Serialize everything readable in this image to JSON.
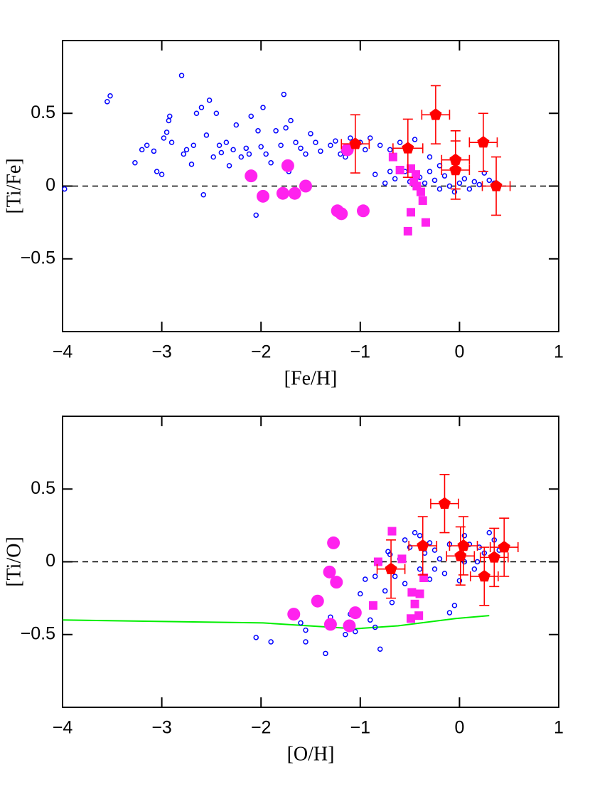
{
  "chart_data": [
    {
      "type": "scatter",
      "xlabel": "[Fe/H]",
      "ylabel": "[Ti/Fe]",
      "xlim": [
        -4,
        1
      ],
      "ylim": [
        -1,
        1
      ],
      "xticks": [
        {
          "value": -4,
          "label": "−4"
        },
        {
          "value": -3,
          "label": "−3"
        },
        {
          "value": -2,
          "label": "−2"
        },
        {
          "value": -1,
          "label": "−1"
        },
        0,
        1
      ],
      "yticks": [
        {
          "value": -0.5,
          "label": "−0.5"
        },
        0,
        0.5
      ],
      "hline": 0,
      "series": [
        {
          "marker": "circle-open",
          "color": "#0000ff",
          "x": [
            -3.98,
            -3.55,
            -3.52,
            -3.27,
            -3.2,
            -3.15,
            -3.08,
            -3.05,
            -3.0,
            -2.98,
            -2.95,
            -2.93,
            -2.92,
            -2.9,
            -2.8,
            -2.78,
            -2.75,
            -2.7,
            -2.68,
            -2.65,
            -2.6,
            -2.58,
            -2.55,
            -2.52,
            -2.48,
            -2.45,
            -2.42,
            -2.4,
            -2.35,
            -2.32,
            -2.28,
            -2.25,
            -2.2,
            -2.15,
            -2.12,
            -2.1,
            -2.05,
            -2.03,
            -2.0,
            -1.98,
            -1.95,
            -1.9,
            -1.85,
            -1.8,
            -1.77,
            -1.75,
            -1.72,
            -1.7,
            -1.65,
            -1.6,
            -1.55,
            -1.5,
            -1.45,
            -1.4,
            -1.3,
            -1.25,
            -1.2,
            -1.15,
            -1.1,
            -1.0,
            -0.95,
            -0.9,
            -0.85,
            -0.8,
            -0.75,
            -0.7,
            -0.7,
            -0.65,
            -0.6,
            -0.55,
            -0.5,
            -0.45,
            -0.4,
            -0.35,
            -0.3,
            -0.3,
            -0.25,
            -0.2,
            -0.2,
            -0.15,
            -0.1,
            -0.05,
            0.0,
            0.05,
            0.1,
            0.15,
            0.2,
            0.25,
            0.3,
            0.35
          ],
          "values": [
            -0.02,
            0.58,
            0.62,
            0.16,
            0.25,
            0.28,
            0.24,
            0.1,
            0.08,
            0.33,
            0.37,
            0.45,
            0.48,
            0.3,
            0.76,
            0.22,
            0.25,
            0.15,
            0.28,
            0.5,
            0.54,
            -0.06,
            0.35,
            0.59,
            0.2,
            0.5,
            0.28,
            0.23,
            0.3,
            0.14,
            0.25,
            0.42,
            0.2,
            0.26,
            0.22,
            0.48,
            -0.2,
            0.38,
            0.27,
            0.54,
            0.22,
            0.16,
            0.38,
            0.28,
            0.63,
            0.4,
            0.1,
            0.45,
            0.3,
            0.26,
            0.22,
            0.36,
            0.3,
            0.24,
            0.28,
            0.31,
            0.22,
            0.2,
            0.33,
            0.3,
            0.25,
            0.33,
            0.08,
            0.28,
            0.02,
            0.25,
            0.1,
            0.05,
            0.3,
            0.1,
            0.03,
            0.32,
            0.06,
            0.02,
            0.1,
            0.2,
            0.04,
            -0.02,
            0.14,
            0.07,
            0.0,
            -0.04,
            0.02,
            0.05,
            -0.02,
            0.03,
            0.01,
            0.09,
            0.04,
            0.02
          ]
        },
        {
          "marker": "circle",
          "color": "#ff22ee",
          "x": [
            -2.1,
            -1.98,
            -1.78,
            -1.73,
            -1.66,
            -1.55,
            -1.23,
            -1.19,
            -0.97,
            -1.13
          ],
          "values": [
            0.07,
            -0.07,
            -0.05,
            0.14,
            -0.05,
            0.0,
            -0.17,
            -0.19,
            -0.17,
            0.25
          ]
        },
        {
          "marker": "square",
          "color": "#ff22ee",
          "x": [
            -0.67,
            -0.6,
            -0.49,
            -0.46,
            -0.43,
            -0.39,
            -0.37,
            -0.49,
            -0.52,
            -0.34,
            -0.44
          ],
          "values": [
            0.2,
            0.11,
            0.12,
            0.03,
            0.0,
            -0.04,
            -0.1,
            -0.18,
            -0.31,
            -0.25,
            0.08
          ]
        },
        {
          "marker": "pentagon",
          "color": "#ff0000",
          "x": [
            -1.05,
            -0.52,
            -0.24,
            -0.04,
            -0.04,
            0.24,
            0.37
          ],
          "values": [
            0.29,
            0.26,
            0.49,
            0.18,
            0.11,
            0.3,
            0.0
          ],
          "xerr": [
            0.14,
            0.15,
            0.14,
            0.14,
            0.14,
            0.14,
            0.14
          ],
          "yerr": [
            0.2,
            0.2,
            0.2,
            0.2,
            0.2,
            0.2,
            0.2
          ]
        }
      ]
    },
    {
      "type": "scatter",
      "xlabel": "[O/H]",
      "ylabel": "[Ti/O]",
      "xlim": [
        -4,
        1
      ],
      "ylim": [
        -1,
        1
      ],
      "xticks": [
        {
          "value": -4,
          "label": "−4"
        },
        {
          "value": -3,
          "label": "−3"
        },
        {
          "value": -2,
          "label": "−2"
        },
        {
          "value": -1,
          "label": "−1"
        },
        0,
        1
      ],
      "yticks": [
        {
          "value": -0.5,
          "label": "−0.5"
        },
        0,
        0.5
      ],
      "hline": 0,
      "series": [
        {
          "marker": "line",
          "color": "#00ee00",
          "x": [
            -4,
            -1.98,
            -1.05,
            -0.62,
            -0.04,
            0.3
          ],
          "values": [
            -0.4,
            -0.42,
            -0.46,
            -0.44,
            -0.39,
            -0.37
          ]
        },
        {
          "marker": "circle-open",
          "color": "#0000ff",
          "x": [
            -2.05,
            -1.9,
            -1.6,
            -1.55,
            -1.55,
            -1.35,
            -1.3,
            -1.15,
            -1.1,
            -1.05,
            -1.0,
            -0.95,
            -0.9,
            -0.85,
            -0.8,
            -0.85,
            -0.8,
            -0.75,
            -0.7,
            -0.68,
            -0.65,
            -0.6,
            -0.55,
            -0.5,
            -0.45,
            -0.4,
            -0.35,
            -0.3,
            -0.25,
            -0.2,
            -0.15,
            -0.1,
            -0.05,
            0.0,
            0.05,
            0.1,
            0.15,
            0.2,
            0.25,
            0.3,
            0.35,
            0.4,
            -0.72,
            -0.1,
            0.18,
            -0.25,
            -0.55,
            -0.4,
            0.05,
            -0.3
          ],
          "values": [
            -0.52,
            -0.55,
            -0.42,
            -0.47,
            -0.55,
            -0.63,
            -0.38,
            -0.5,
            -0.36,
            -0.48,
            -0.22,
            -0.12,
            -0.4,
            -0.45,
            -0.6,
            -0.1,
            0.0,
            -0.2,
            0.05,
            -0.28,
            -0.1,
            0.02,
            -0.15,
            0.1,
            0.2,
            -0.05,
            0.06,
            -0.12,
            0.08,
            0.02,
            -0.08,
            0.12,
            -0.3,
            -0.13,
            0.0,
            0.12,
            -0.05,
            0.1,
            0.06,
            0.2,
            0.15,
            0.08,
            0.07,
            -0.35,
            0.0,
            -0.05,
            0.15,
            0.18,
            0.18,
            0.13
          ]
        },
        {
          "marker": "circle",
          "color": "#ff22ee",
          "x": [
            -1.31,
            -1.27,
            -1.24,
            -1.43,
            -1.67,
            -1.3,
            -1.11,
            -1.05
          ],
          "values": [
            -0.07,
            0.13,
            -0.14,
            -0.27,
            -0.36,
            -0.43,
            -0.44,
            -0.35
          ]
        },
        {
          "marker": "square",
          "color": "#ff22ee",
          "x": [
            -0.68,
            -0.82,
            -0.87,
            -0.58,
            -0.48,
            -0.45,
            -0.4,
            -0.49,
            -0.41,
            -0.36
          ],
          "values": [
            0.21,
            0.0,
            -0.3,
            0.02,
            -0.21,
            -0.29,
            -0.22,
            -0.39,
            -0.37,
            -0.11
          ]
        },
        {
          "marker": "pentagon",
          "color": "#ff0000",
          "x": [
            -0.69,
            -0.37,
            -0.15,
            0.01,
            0.04,
            0.25,
            0.35,
            0.45
          ],
          "values": [
            -0.05,
            0.11,
            0.4,
            0.04,
            0.11,
            -0.1,
            0.03,
            0.1
          ],
          "xerr": [
            0.14,
            0.14,
            0.14,
            0.14,
            0.14,
            0.14,
            0.14,
            0.14
          ],
          "yerr": [
            0.2,
            0.2,
            0.2,
            0.2,
            0.2,
            0.2,
            0.2,
            0.2
          ]
        }
      ]
    }
  ]
}
